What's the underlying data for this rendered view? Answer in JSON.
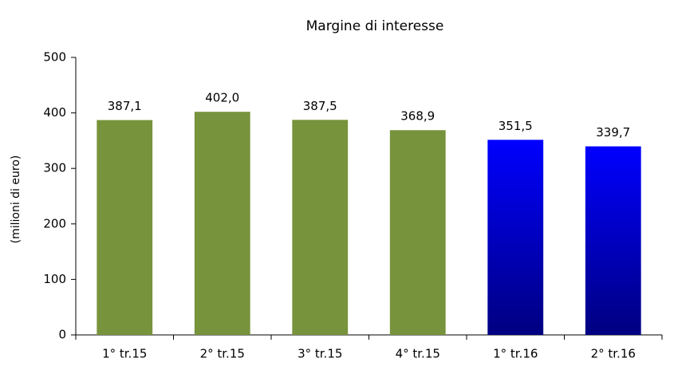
{
  "chart_data": {
    "type": "bar",
    "title": "Margine di interesse",
    "y_label": "(milioni di euro)",
    "categories": [
      "1° tr.15",
      "2° tr.15",
      "3° tr.15",
      "4° tr.15",
      "1° tr.16",
      "2° tr.16"
    ],
    "values": [
      387.1,
      402.0,
      387.5,
      368.9,
      351.5,
      339.7
    ],
    "value_labels": [
      "387,1",
      "402,0",
      "387,5",
      "368,9",
      "351,5",
      "339,7"
    ],
    "colors": [
      "#77933c",
      "#77933c",
      "#77933c",
      "#77933c",
      [
        "#0000ff",
        "#000080"
      ],
      [
        "#0000ff",
        "#000080"
      ]
    ],
    "ylim": [
      0,
      500
    ],
    "yticks": [
      0,
      100,
      200,
      300,
      400,
      500
    ],
    "grid": false
  }
}
